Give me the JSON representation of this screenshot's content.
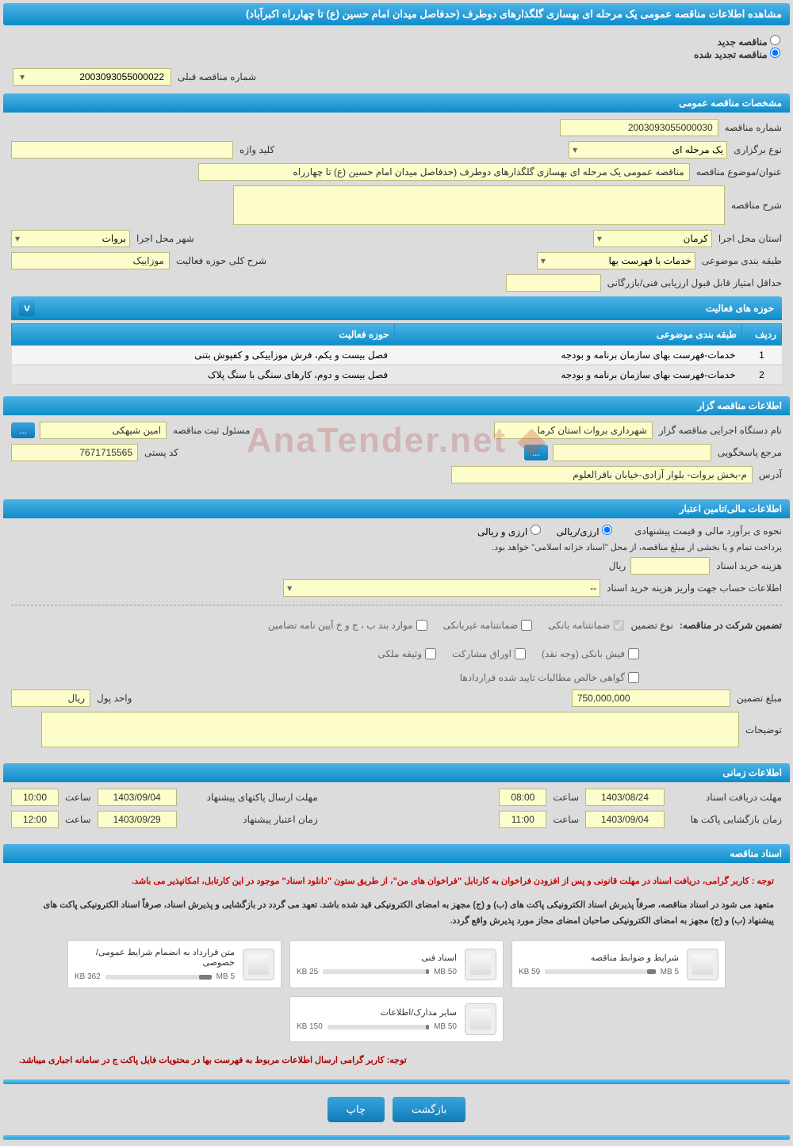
{
  "header": {
    "title": "مشاهده اطلاعات مناقصه عمومی یک مرحله ای بهسازی گلگذارهای دوطرف (حدفاصل میدان امام حسین (ع) تا چهارراه اکبرآباد)"
  },
  "radios": {
    "new_label": "مناقصه جدید",
    "renewed_label": "مناقصه تجدید شده"
  },
  "prev_number": {
    "label": "شماره مناقصه قبلی",
    "value": "2003093055000022"
  },
  "sections": {
    "general": "مشخصات مناقصه عمومی",
    "activity": "حوزه های فعالیت",
    "holder": "اطلاعات مناقصه گزار",
    "financial": "اطلاعات مالی/تامین اعتبار",
    "time": "اطلاعات زمانی",
    "docs": "اسناد مناقصه"
  },
  "general": {
    "num_label": "شماره مناقصه",
    "num_value": "2003093055000030",
    "type_label": "نوع برگزاری",
    "type_value": "یک مرحله ای",
    "keyword_label": "کلید واژه",
    "keyword_value": "",
    "subject_label": "عنوان/موضوع مناقصه",
    "subject_value": "مناقصه عمومی یک مرحله ای بهسازی گلگذارهای دوطرف (حدفاصل میدان امام حسین (ع) تا چهارراه",
    "desc_label": "شرح مناقصه",
    "desc_value": "",
    "province_label": "استان محل اجرا",
    "province_value": "کرمان",
    "city_label": "شهر محل اجرا",
    "city_value": "بروات",
    "category_label": "طبقه بندی موضوعی",
    "category_value": "خدمات با فهرست بها",
    "activity_desc_label": "شرح کلی حوزه فعالیت",
    "activity_desc_value": "موزاییک",
    "min_score_label": "حداقل امتیاز قابل قبول ارزیابی فنی/بازرگانی",
    "min_score_value": ""
  },
  "activity_table": {
    "col1": "ردیف",
    "col2": "طبقه بندی موضوعی",
    "col3": "حوزه فعالیت",
    "rows": [
      {
        "n": "1",
        "cat": "خدمات-فهرست بهای سازمان برنامه و بودجه",
        "act": "فصل بیست و یکم، فرش موزاییکی و کفپوش بتنی"
      },
      {
        "n": "2",
        "cat": "خدمات-فهرست بهای سازمان برنامه و بودجه",
        "act": "فصل بیست و دوم، کارهای سنگی با سنگ پلاک"
      }
    ]
  },
  "holder": {
    "name_label": "نام دستگاه اجرایی مناقصه گزار",
    "name_value": "شهرداری بروات استان کرما",
    "reg_label": "مسئول ثبت مناقصه",
    "reg_value": "امین شیهکی",
    "contact_label": "مرجع پاسخگویی",
    "contact_value": "",
    "postal_label": "کد پستی",
    "postal_value": "7671715565",
    "address_label": "آدرس",
    "address_value": "م-بخش بروات- بلوار آزادی-خیابان باقرالعلوم",
    "dots": "...",
    "more": "..."
  },
  "financial": {
    "estimate_label": "نحوه ی برآورد مالی و قیمت پیشنهادی",
    "opt1": "ارزی/ریالی",
    "opt2": "ارزی و ریالی",
    "note": "پرداخت تمام و یا بخشی از مبلغ مناقصه، از محل \"اسناد خزانه اسلامی\" خواهد بود.",
    "purchase_label": "هزینه خرید اسناد",
    "purchase_value": "",
    "purchase_unit": "ریال",
    "account_label": "اطلاعات حساب جهت واریز هزینه خرید اسناد",
    "account_value": "--",
    "guarantee_label": "تضمین شرکت در مناقصه:",
    "guarantee_type_label": "نوع تضمین",
    "cb1": "ضمانتنامه بانکی",
    "cb2": "ضمانتنامه غیربانکی",
    "cb3": "موارد بند ب ، ج و خ آیین نامه تضامین",
    "cb4": "فیش بانکی (وجه نقد)",
    "cb5": "اوراق مشارکت",
    "cb6": "وثیقه ملکی",
    "cb7": "گواهی خالص مطالبات تایید شده قراردادها",
    "amount_label": "مبلغ تضمین",
    "amount_value": "750,000,000",
    "unit_label": "واحد پول",
    "unit_value": "ریال",
    "explain_label": "توضیحات",
    "explain_value": ""
  },
  "time": {
    "t1_label": "مهلت دریافت اسناد",
    "t1_date": "1403/08/24",
    "t1_hour_label": "ساعت",
    "t1_hour": "08:00",
    "t2_label": "مهلت ارسال پاکتهای پیشنهاد",
    "t2_date": "1403/09/04",
    "t2_hour_label": "ساعت",
    "t2_hour": "10:00",
    "t3_label": "زمان بازگشایی پاکت ها",
    "t3_date": "1403/09/04",
    "t3_hour_label": "ساعت",
    "t3_hour": "11:00",
    "t4_label": "زمان اعتبار پیشنهاد",
    "t4_date": "1403/09/29",
    "t4_hour_label": "ساعت",
    "t4_hour": "12:00"
  },
  "docs": {
    "warning1": "توجه : کاربر گرامی، دریافت اسناد در مهلت قانونی و پس از افزودن فراخوان به کارتابل \"فراخوان های من\"، از طریق ستون \"دانلود اسناد\" موجود در این کارتابل، امکانپذیر می باشد.",
    "warning2": "متعهد می شود در اسناد مناقصه، صرفاً پذیرش اسناد الکترونیکی پاکت های (ب) و (ج) مجهز به امضای الکترونیکی قید شده باشد. تعهد می گردد در بازگشایی و پذیرش اسناد، صرفاً اسناد الکترونیکی پاکت های پیشنهاد (ب) و (ج) مجهز به امضای الکترونیکی صاحبان امضای مجاز مورد پذیرش واقع گردد.",
    "warning3": "توجه: کاربر گرامی ارسال اطلاعات مربوط به فهرست بها در محتویات فایل پاکت ج در سامانه اجباری میباشد.",
    "cards": [
      {
        "title": "شرایط و ضوابط مناقصه",
        "size": "59 KB",
        "max": "5 MB",
        "fill": 8
      },
      {
        "title": "اسناد فنی",
        "size": "25 KB",
        "max": "50 MB",
        "fill": 3
      },
      {
        "title": "متن قرارداد به انضمام شرایط عمومی/خصوصی",
        "size": "362 KB",
        "max": "5 MB",
        "fill": 12
      },
      {
        "title": "سایر مدارک/اطلاعات",
        "size": "150 KB",
        "max": "50 MB",
        "fill": 3
      }
    ]
  },
  "footer": {
    "back": "بازگشت",
    "print": "چاپ"
  },
  "watermark": "AnaTender.net"
}
